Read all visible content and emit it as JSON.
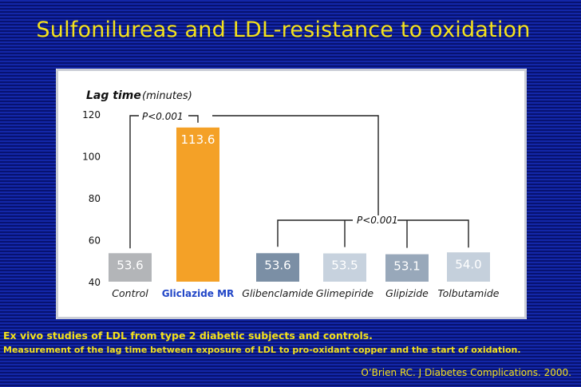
{
  "slide": {
    "title": "Sulfonilureas and LDL-resistance to oxidation",
    "caption_line1": "Ex vivo studies of LDL from type 2 diabetic subjects and controls.",
    "caption_line2": "Measurement of the lag time between exposure of LDL to pro-oxidant copper and the start of oxidation.",
    "citation": "O’Brien RC. J Diabetes Complications. 2000."
  },
  "chart_data": {
    "type": "bar",
    "ylabel_bold": "Lag time",
    "ylabel_unit": "(minutes)",
    "ylim": [
      40,
      120
    ],
    "yticks": [
      40,
      60,
      80,
      100,
      120
    ],
    "categories": [
      "Control",
      "Gliclazide MR",
      "Glibenclamide",
      "Glimepiride",
      "Glipizide",
      "Tolbutamide"
    ],
    "values": [
      53.6,
      113.6,
      53.6,
      53.5,
      53.1,
      54.0
    ],
    "value_labels": [
      "53.6",
      "113.6",
      "53.6",
      "53.5",
      "53.1",
      "54.0"
    ],
    "grid": false,
    "annotations": [
      {
        "text": "P<0.001",
        "between": [
          "Control",
          "Gliclazide MR"
        ]
      },
      {
        "text": "P<0.001",
        "between": [
          "Gliclazide MR",
          "Glibenclamide",
          "Glimepiride",
          "Glipizide",
          "Tolbutamide"
        ]
      }
    ],
    "colors": {
      "Control": "#b3b5b8",
      "Gliclazide MR": "#f4a127",
      "Glibenclamide": "#7b8fa5",
      "Glimepiride": "#c7d2de",
      "Glipizide": "#98a8ba",
      "Tolbutamide": "#c5d0dc",
      "highlight_label": "#2146c7",
      "category_label": "#1c1c1c",
      "value_text": "#ffffff"
    }
  }
}
